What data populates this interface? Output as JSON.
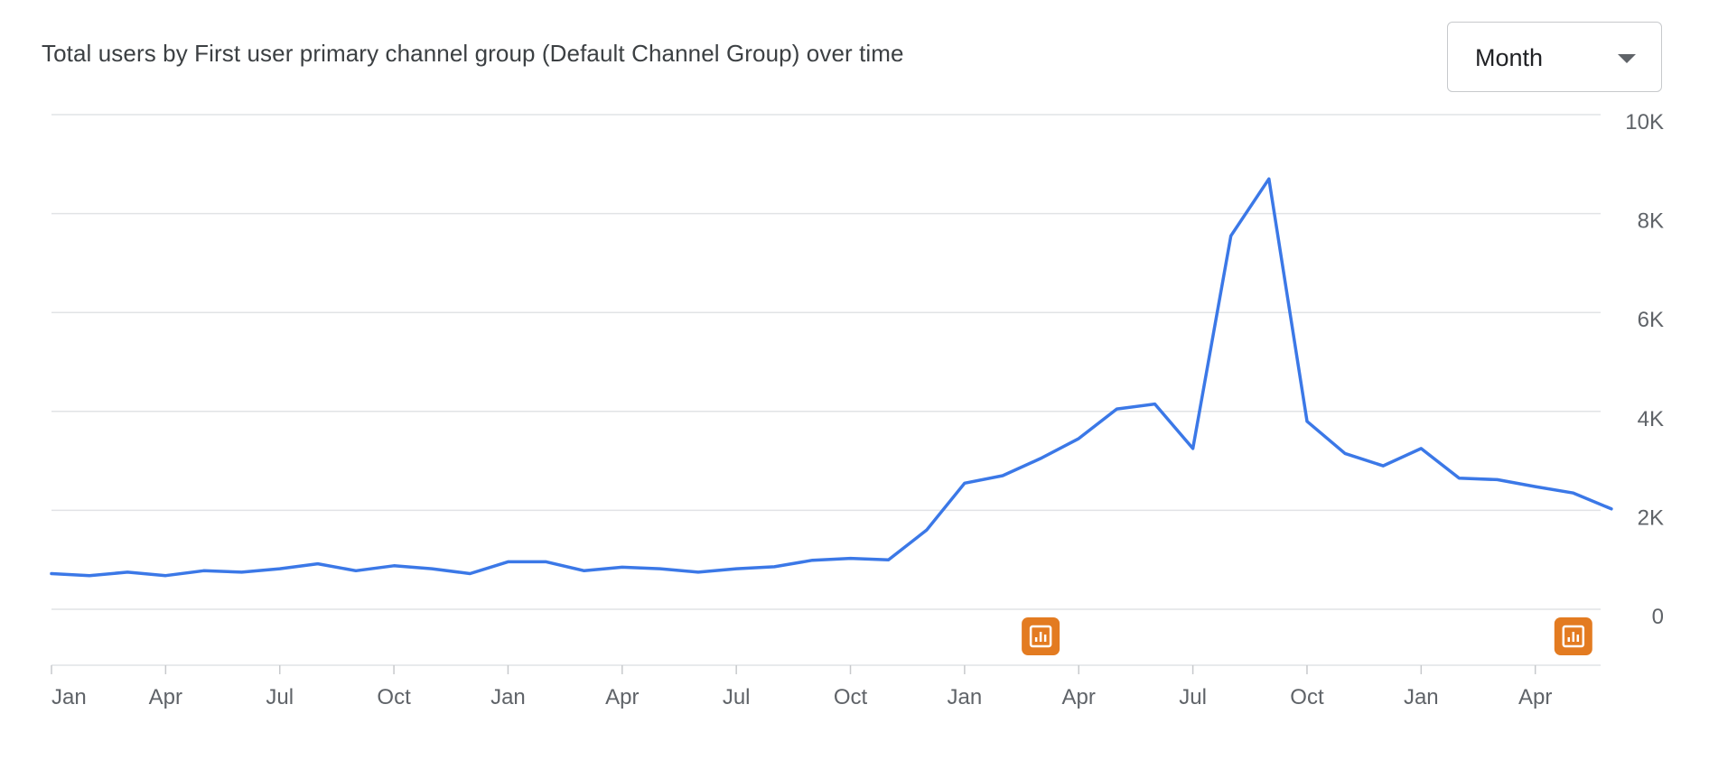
{
  "header": {
    "title": "Total users by First user primary channel group (Default Channel Group) over time"
  },
  "period_selector": {
    "value": "Month"
  },
  "colors": {
    "line": "#3b78e7",
    "grid": "#e1e3e6",
    "annotation": "#e37b21",
    "axis_text": "#5f6368"
  },
  "annotations": [
    {
      "icon": "annotation-icon",
      "x_month_index": 26
    },
    {
      "icon": "annotation-icon",
      "x_month_index": 40
    }
  ],
  "chart_data": {
    "type": "line",
    "title": "Total users by First user primary channel group (Default Channel Group) over time",
    "xlabel": "",
    "ylabel": "",
    "ylim": [
      0,
      10000
    ],
    "y_ticks": [
      0,
      2000,
      4000,
      6000,
      8000,
      10000
    ],
    "y_tick_labels": [
      "0",
      "2K",
      "4K",
      "6K",
      "8K",
      "10K"
    ],
    "x_tick_labels": [
      "Jan",
      "Apr",
      "Jul",
      "Oct",
      "Jan",
      "Apr",
      "Jul",
      "Oct",
      "Jan",
      "Apr",
      "Jul",
      "Oct",
      "Jan",
      "Apr"
    ],
    "x_tick_month_index": [
      0,
      3,
      6,
      9,
      12,
      15,
      18,
      21,
      24,
      27,
      30,
      33,
      36,
      39
    ],
    "grid": true,
    "y_axis_position": "right",
    "series": [
      {
        "values": [
          720,
          680,
          750,
          680,
          780,
          750,
          820,
          920,
          780,
          880,
          820,
          720,
          960,
          960,
          780,
          850,
          820,
          750,
          820,
          860,
          990,
          1030,
          1000,
          1600,
          2550,
          2700,
          3050,
          3450,
          4050,
          4150,
          3250,
          7550,
          8700,
          3800,
          3150,
          2900,
          3250,
          2650,
          2620,
          2480,
          2350,
          2030
        ]
      }
    ]
  }
}
